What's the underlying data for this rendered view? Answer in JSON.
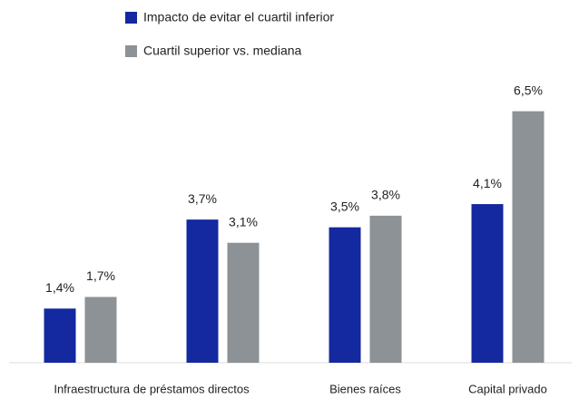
{
  "chart_data": {
    "type": "bar",
    "categories": [
      "Infraestructura de préstamos directos",
      null,
      "Bienes raíces",
      "Capital privado"
    ],
    "series": [
      {
        "name": "Impacto de evitar el cuartil inferior",
        "color": "#1428a0",
        "values": [
          1.4,
          3.7,
          3.5,
          4.1
        ],
        "value_labels": [
          "1,4%",
          "3,7%",
          "3,5%",
          "4,1%"
        ]
      },
      {
        "name": "Cuartil superior vs. mediana",
        "color": "#8c9296",
        "values": [
          1.7,
          3.1,
          3.8,
          6.5
        ],
        "value_labels": [
          "1,7%",
          "3,1%",
          "3,8%",
          "6,5%"
        ]
      }
    ],
    "ylim": [
      0,
      7.5
    ]
  }
}
